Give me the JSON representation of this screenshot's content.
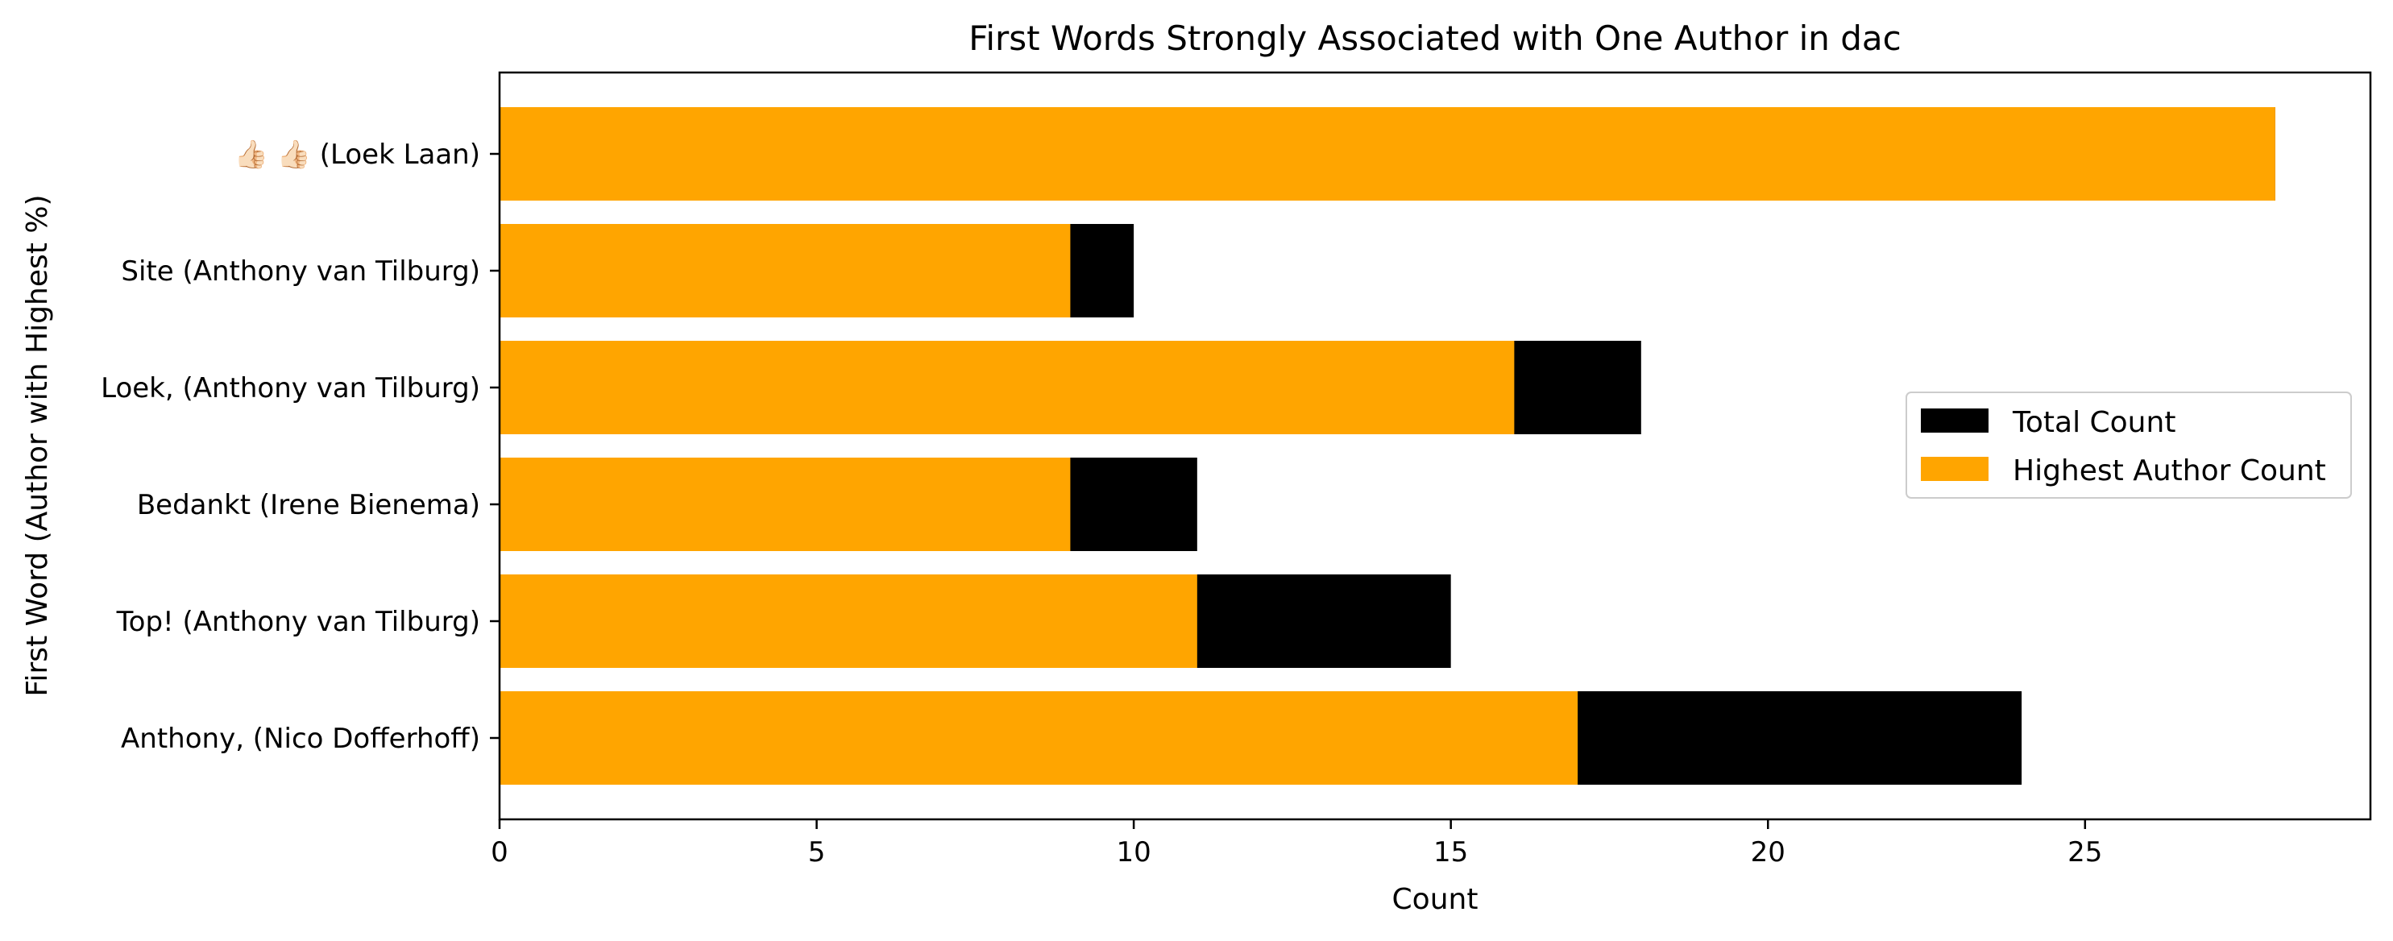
{
  "chart_data": {
    "type": "bar",
    "orientation": "horizontal",
    "stacked": false,
    "title": "First Words Strongly Associated with One Author in dac",
    "xlabel": "Count",
    "ylabel": "First Word (Author with Highest %)",
    "xlim": [
      0,
      29.5
    ],
    "xticks": [
      0,
      5,
      10,
      15,
      20,
      25
    ],
    "categories": [
      "👍🏻 👍🏻 (Loek Laan)",
      "Site (Anthony van Tilburg)",
      "Loek, (Anthony van Tilburg)",
      "Bedankt (Irene Bienema)",
      "Top! (Anthony van Tilburg)",
      "Anthony, (Nico Dofferhoff)"
    ],
    "series": [
      {
        "name": "Total Count",
        "color": "#000000",
        "values": [
          28,
          10,
          18,
          11,
          15,
          24
        ]
      },
      {
        "name": "Highest Author Count",
        "color": "#FFA500",
        "values": [
          28,
          9,
          16,
          9,
          11,
          17
        ]
      }
    ],
    "legend_position": "center-right",
    "grid": false
  }
}
